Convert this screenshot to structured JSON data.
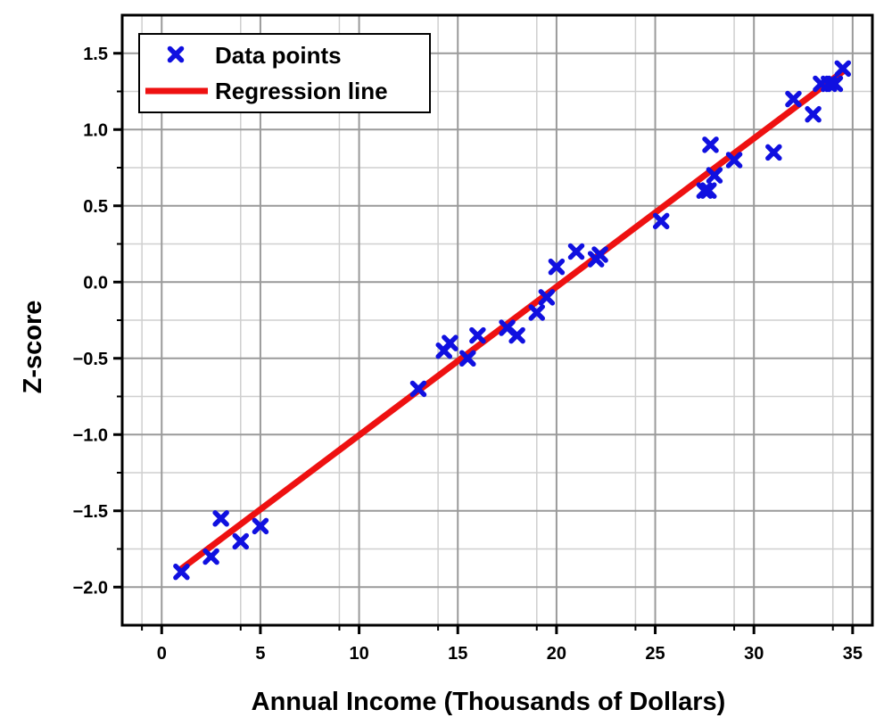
{
  "chart_data": {
    "type": "scatter",
    "xlabel": "Annual Income (Thousands of Dollars)",
    "ylabel": "Z-score",
    "xlim": [
      -2,
      36
    ],
    "ylim": [
      -2.25,
      1.75
    ],
    "x_ticks": [
      0,
      5,
      10,
      15,
      20,
      25,
      30,
      35
    ],
    "y_ticks": [
      -2.0,
      -1.5,
      -1.0,
      -0.5,
      0.0,
      0.5,
      1.0,
      1.5
    ],
    "x_tick_labels": [
      "0",
      "5",
      "10",
      "15",
      "20",
      "25",
      "30",
      "35"
    ],
    "y_tick_labels": [
      "−2.0",
      "−1.5",
      "−1.0",
      "−0.5",
      "0.0",
      "0.5",
      "1.0",
      "1.5"
    ],
    "grid": true,
    "legend_position": "top-left",
    "series": [
      {
        "name": "Data points",
        "marker": "x",
        "color": "#1010e0",
        "points": [
          [
            1.0,
            -1.9
          ],
          [
            2.5,
            -1.8
          ],
          [
            3.0,
            -1.55
          ],
          [
            4.0,
            -1.7
          ],
          [
            5.0,
            -1.6
          ],
          [
            13.0,
            -0.7
          ],
          [
            14.3,
            -0.45
          ],
          [
            14.6,
            -0.4
          ],
          [
            15.5,
            -0.5
          ],
          [
            16.0,
            -0.35
          ],
          [
            17.5,
            -0.3
          ],
          [
            18.0,
            -0.35
          ],
          [
            19.0,
            -0.2
          ],
          [
            19.5,
            -0.1
          ],
          [
            20.0,
            0.1
          ],
          [
            21.0,
            0.2
          ],
          [
            22.0,
            0.15
          ],
          [
            22.2,
            0.18
          ],
          [
            25.3,
            0.4
          ],
          [
            27.5,
            0.6
          ],
          [
            27.7,
            0.6
          ],
          [
            27.8,
            0.9
          ],
          [
            28.0,
            0.7
          ],
          [
            29.0,
            0.8
          ],
          [
            31.0,
            0.85
          ],
          [
            32.0,
            1.2
          ],
          [
            33.0,
            1.1
          ],
          [
            33.4,
            1.3
          ],
          [
            33.8,
            1.3
          ],
          [
            34.1,
            1.3
          ],
          [
            34.5,
            1.4
          ]
        ]
      },
      {
        "name": "Regression line",
        "type": "line",
        "color": "#ee1111",
        "points": [
          [
            1.0,
            -1.88
          ],
          [
            34.5,
            1.38
          ]
        ]
      }
    ]
  }
}
